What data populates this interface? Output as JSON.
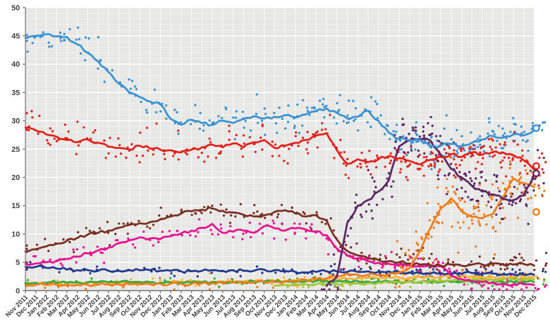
{
  "chart_data": {
    "type": "scatter",
    "subtype": "opinion-polling-scatter-with-loess-trend-lines",
    "title": "",
    "xlabel": "",
    "ylabel": "",
    "ylim": [
      0,
      50
    ],
    "y_ticks": [
      0,
      5,
      10,
      15,
      20,
      25,
      30,
      35,
      40,
      45,
      50
    ],
    "x_categories": [
      "Nov 2011",
      "Dec 2011",
      "Jan 2012",
      "Feb 2012",
      "Mar 2012",
      "Apr 2012",
      "May 2012",
      "Jun 2012",
      "Jul 2012",
      "Aug 2012",
      "Sep 2012",
      "Oct 2012",
      "Nov 2012",
      "Dec 2012",
      "Jan 2013",
      "Feb 2013",
      "Mar 2013",
      "Apr 2013",
      "May 2013",
      "Jun 2013",
      "Jul 2013",
      "Aug 2013",
      "Sep 2013",
      "Oct 2013",
      "Nov 2013",
      "Dec 2013",
      "Jan 2014",
      "Feb 2014",
      "Mar 2014",
      "Apr 2014",
      "May 2014",
      "Jun 2014",
      "Jul 2014",
      "Aug 2014",
      "Sep 2014",
      "Oct 2014",
      "Nov 2014",
      "Dec 2014",
      "Jan 2015",
      "Feb 2015",
      "Mar 2015",
      "Apr 2015",
      "May 2015",
      "Jun 2015",
      "Jul 2015",
      "Aug 2015",
      "Sep 2015",
      "Oct 2015",
      "Nov 2015",
      "Dec 2015"
    ],
    "series": [
      {
        "name": "light-blue",
        "color": "#3B92D2",
        "values": [
          44.6,
          45.0,
          45.3,
          44.9,
          44.8,
          43.5,
          42.0,
          40.5,
          38.6,
          36.6,
          35.0,
          34.2,
          33.4,
          32.9,
          30.3,
          29.3,
          30.2,
          29.6,
          29.3,
          30.0,
          29.6,
          30.3,
          30.8,
          30.4,
          30.7,
          31.0,
          30.6,
          31.1,
          31.7,
          32.2,
          31.4,
          30.4,
          30.7,
          31.8,
          30.0,
          27.9,
          26.8,
          26.5,
          26.7,
          25.4,
          25.6,
          25.9,
          25.5,
          26.1,
          26.7,
          27.3,
          27.0,
          27.6,
          27.4,
          28.3
        ]
      },
      {
        "name": "red",
        "color": "#E4221C",
        "values": [
          28.8,
          28.3,
          27.6,
          27.2,
          26.6,
          26.2,
          26.7,
          26.1,
          25.4,
          25.2,
          24.9,
          25.6,
          25.1,
          24.9,
          24.8,
          24.4,
          24.9,
          25.3,
          25.8,
          25.3,
          26.0,
          25.3,
          26.2,
          26.6,
          25.2,
          25.6,
          26.1,
          26.6,
          27.4,
          27.8,
          24.8,
          22.4,
          23.2,
          22.7,
          23.2,
          23.8,
          23.4,
          22.9,
          22.3,
          23.1,
          23.6,
          24.1,
          23.6,
          24.4,
          24.0,
          24.5,
          24.4,
          23.9,
          23.0,
          21.4
        ]
      },
      {
        "name": "dark-brown",
        "color": "#7A2F23",
        "values": [
          6.9,
          7.3,
          7.8,
          8.3,
          8.8,
          9.3,
          9.9,
          10.2,
          10.6,
          11.1,
          11.6,
          11.9,
          12.1,
          12.6,
          13.1,
          13.6,
          14.0,
          14.3,
          14.5,
          14.1,
          13.8,
          13.4,
          13.1,
          13.3,
          13.9,
          14.2,
          13.6,
          13.1,
          13.3,
          12.4,
          9.0,
          7.0,
          6.2,
          5.7,
          5.4,
          5.2,
          5.0,
          4.8,
          4.6,
          4.5,
          4.4,
          4.6,
          4.4,
          4.6,
          4.6,
          4.8,
          4.6,
          4.6,
          4.7,
          4.4
        ]
      },
      {
        "name": "magenta",
        "color": "#EA1190",
        "values": [
          4.7,
          4.8,
          5.0,
          5.3,
          5.6,
          6.0,
          6.6,
          7.1,
          7.6,
          8.4,
          8.9,
          9.4,
          9.2,
          9.1,
          9.6,
          10.1,
          10.6,
          11.1,
          11.8,
          10.2,
          10.4,
          10.6,
          10.2,
          11.4,
          11.0,
          10.6,
          11.0,
          10.8,
          10.4,
          9.8,
          7.4,
          6.2,
          5.7,
          5.2,
          4.9,
          4.7,
          4.5,
          4.4,
          4.4,
          4.5,
          4.3,
          2.6,
          2.0,
          1.7,
          1.5,
          1.4,
          1.2,
          1.1,
          1.1,
          1.0
        ]
      },
      {
        "name": "navy",
        "color": "#20398F",
        "values": [
          4.2,
          4.2,
          4.0,
          3.9,
          3.7,
          3.6,
          3.6,
          3.5,
          3.5,
          3.5,
          3.6,
          3.6,
          3.6,
          3.5,
          3.5,
          3.4,
          3.4,
          3.5,
          3.6,
          3.5,
          3.6,
          3.5,
          3.5,
          3.7,
          3.6,
          3.5,
          3.3,
          3.2,
          3.3,
          3.4,
          3.4,
          3.3,
          3.3,
          3.4,
          3.3,
          3.4,
          3.3,
          3.2,
          3.1,
          3.0,
          3.1,
          3.0,
          3.0,
          3.1,
          3.0,
          3.0,
          2.9,
          2.9,
          2.8,
          2.8
        ]
      },
      {
        "name": "purple",
        "color": "#5C2663",
        "values": [
          null,
          null,
          null,
          null,
          null,
          null,
          null,
          null,
          null,
          null,
          null,
          null,
          null,
          null,
          null,
          null,
          null,
          null,
          null,
          null,
          null,
          null,
          null,
          null,
          null,
          null,
          null,
          null,
          null,
          0.8,
          2.5,
          12.0,
          15.0,
          16.0,
          17.5,
          19.5,
          25.5,
          26.5,
          26.8,
          26.5,
          24.0,
          21.5,
          20.0,
          18.5,
          17.5,
          17.0,
          16.2,
          16.0,
          16.8,
          20.5
        ]
      },
      {
        "name": "orange",
        "color": "#EF7D1A",
        "values": [
          1.0,
          1.0,
          1.0,
          1.0,
          1.0,
          1.0,
          1.0,
          1.0,
          1.1,
          1.1,
          1.1,
          1.1,
          1.1,
          1.2,
          1.2,
          1.2,
          1.2,
          1.3,
          1.3,
          1.3,
          1.4,
          1.4,
          1.4,
          1.5,
          1.5,
          1.6,
          1.7,
          1.9,
          2.0,
          2.2,
          2.6,
          3.0,
          2.8,
          2.8,
          2.7,
          2.9,
          3.2,
          4.0,
          7.0,
          11.0,
          14.5,
          16.3,
          14.0,
          13.0,
          12.8,
          13.5,
          16.5,
          19.8,
          19.0,
          18.3
        ]
      },
      {
        "name": "amber",
        "color": "#F8B43A",
        "values": [
          1.2,
          1.2,
          1.2,
          1.2,
          1.3,
          1.3,
          1.3,
          1.3,
          1.3,
          1.4,
          1.4,
          1.4,
          1.4,
          1.4,
          1.5,
          1.5,
          1.5,
          1.5,
          1.6,
          1.6,
          1.6,
          1.6,
          1.7,
          1.7,
          1.7,
          1.8,
          1.8,
          1.9,
          1.9,
          2.0,
          2.1,
          2.1,
          2.2,
          2.2,
          2.2,
          2.3,
          2.3,
          2.3,
          2.4,
          2.4,
          2.4,
          2.4,
          2.4,
          2.5,
          2.4,
          2.4,
          2.4,
          2.4,
          2.4,
          2.4
        ]
      },
      {
        "name": "green",
        "color": "#38A83C",
        "values": [
          1.4,
          1.4,
          1.4,
          1.4,
          1.4,
          1.5,
          1.5,
          1.5,
          1.5,
          1.5,
          1.5,
          1.5,
          1.5,
          1.4,
          1.4,
          1.4,
          1.4,
          1.5,
          1.5,
          1.5,
          1.5,
          1.5,
          1.6,
          1.6,
          1.6,
          1.6,
          1.6,
          1.6,
          1.7,
          1.7,
          1.7,
          1.7,
          1.7,
          1.6,
          1.6,
          1.6,
          1.6,
          1.6,
          1.5,
          1.5,
          1.5,
          1.5,
          1.5,
          1.6,
          1.6,
          1.5,
          1.5,
          1.5,
          1.5,
          1.5
        ]
      },
      {
        "name": "lime",
        "color": "#A4C639",
        "values": [
          null,
          null,
          null,
          null,
          null,
          null,
          null,
          null,
          null,
          null,
          null,
          null,
          null,
          null,
          null,
          null,
          null,
          null,
          null,
          null,
          null,
          null,
          null,
          null,
          0.9,
          1.0,
          1.0,
          1.1,
          1.1,
          1.2,
          1.2,
          1.3,
          1.3,
          1.3,
          1.4,
          1.4,
          1.5,
          1.6,
          1.6,
          1.7,
          1.7,
          1.8,
          1.8,
          1.9,
          1.9,
          1.9,
          2.0,
          2.0,
          2.0,
          2.0
        ]
      }
    ],
    "end_markers": [
      {
        "series": "light-blue",
        "value": 28.7
      },
      {
        "series": "red",
        "value": 22.0
      },
      {
        "series": "purple",
        "value": 20.7
      },
      {
        "series": "orange",
        "value": 13.9
      }
    ],
    "layout": {
      "legend": false,
      "grid": true,
      "plot_bg": "#E7E7E6",
      "grid_major": "#FFFFFF",
      "grid_minor_opacity": 0.45,
      "axis_color": "#6E6E6E",
      "tick_label_color": "#3D3D3D",
      "x_label_rotation_deg": -45,
      "scatter_dot_radius": 1.7,
      "scatter_seed": 20151220,
      "scatter_sigma": {
        "light-blue": 1.6,
        "red": 1.6,
        "dark-brown": 1.1,
        "magenta": 1.0,
        "navy": 0.5,
        "purple": 2.0,
        "orange": 2.2,
        "orange_early": 0.5,
        "amber": 0.45,
        "green": 0.4,
        "lime": 0.4
      },
      "scatter_base_count": {
        "light-blue": 4,
        "red": 4,
        "dark-brown": 2.5,
        "magenta": 2.5,
        "navy": 1.3,
        "purple": 4.5,
        "orange": 5,
        "orange_early": 1,
        "amber": 1.2,
        "green": 1.2,
        "lime": 1.2
      }
    }
  }
}
